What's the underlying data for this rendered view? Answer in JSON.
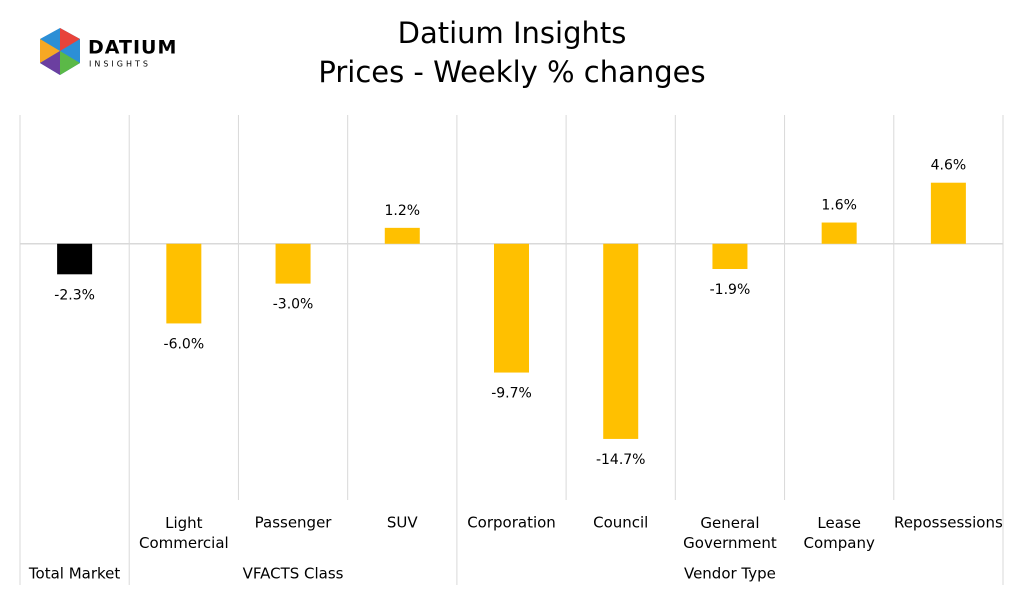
{
  "logo": {
    "name": "DATIUM",
    "tagline": "INSIGHTS"
  },
  "chart_data": {
    "type": "bar",
    "title": "Datium Insights",
    "subtitle": "Prices - Weekly % changes",
    "groups": [
      {
        "name": "Total Market",
        "categories": [
          null
        ]
      },
      {
        "name": "VFACTS Class",
        "categories": [
          "Light\nCommercial",
          "Passenger",
          "SUV"
        ]
      },
      {
        "name": "Vendor Type",
        "categories": [
          "Corporation",
          "Council",
          "General\nGovernment",
          "Lease\nCompany",
          "Repossessions"
        ]
      }
    ],
    "values": [
      -2.3,
      -6.0,
      -3.0,
      1.2,
      -9.7,
      -14.7,
      -1.9,
      1.6,
      4.6
    ],
    "value_labels": [
      "-2.3%",
      "-6.0%",
      "-3.0%",
      "1.2%",
      "-9.7%",
      "-14.7%",
      "-1.9%",
      "1.6%",
      "4.6%"
    ],
    "colors": [
      "#000000",
      "#ffc000",
      "#ffc000",
      "#ffc000",
      "#ffc000",
      "#ffc000",
      "#ffc000",
      "#ffc000",
      "#ffc000"
    ],
    "ylim": [
      -19.3,
      9.7
    ]
  }
}
